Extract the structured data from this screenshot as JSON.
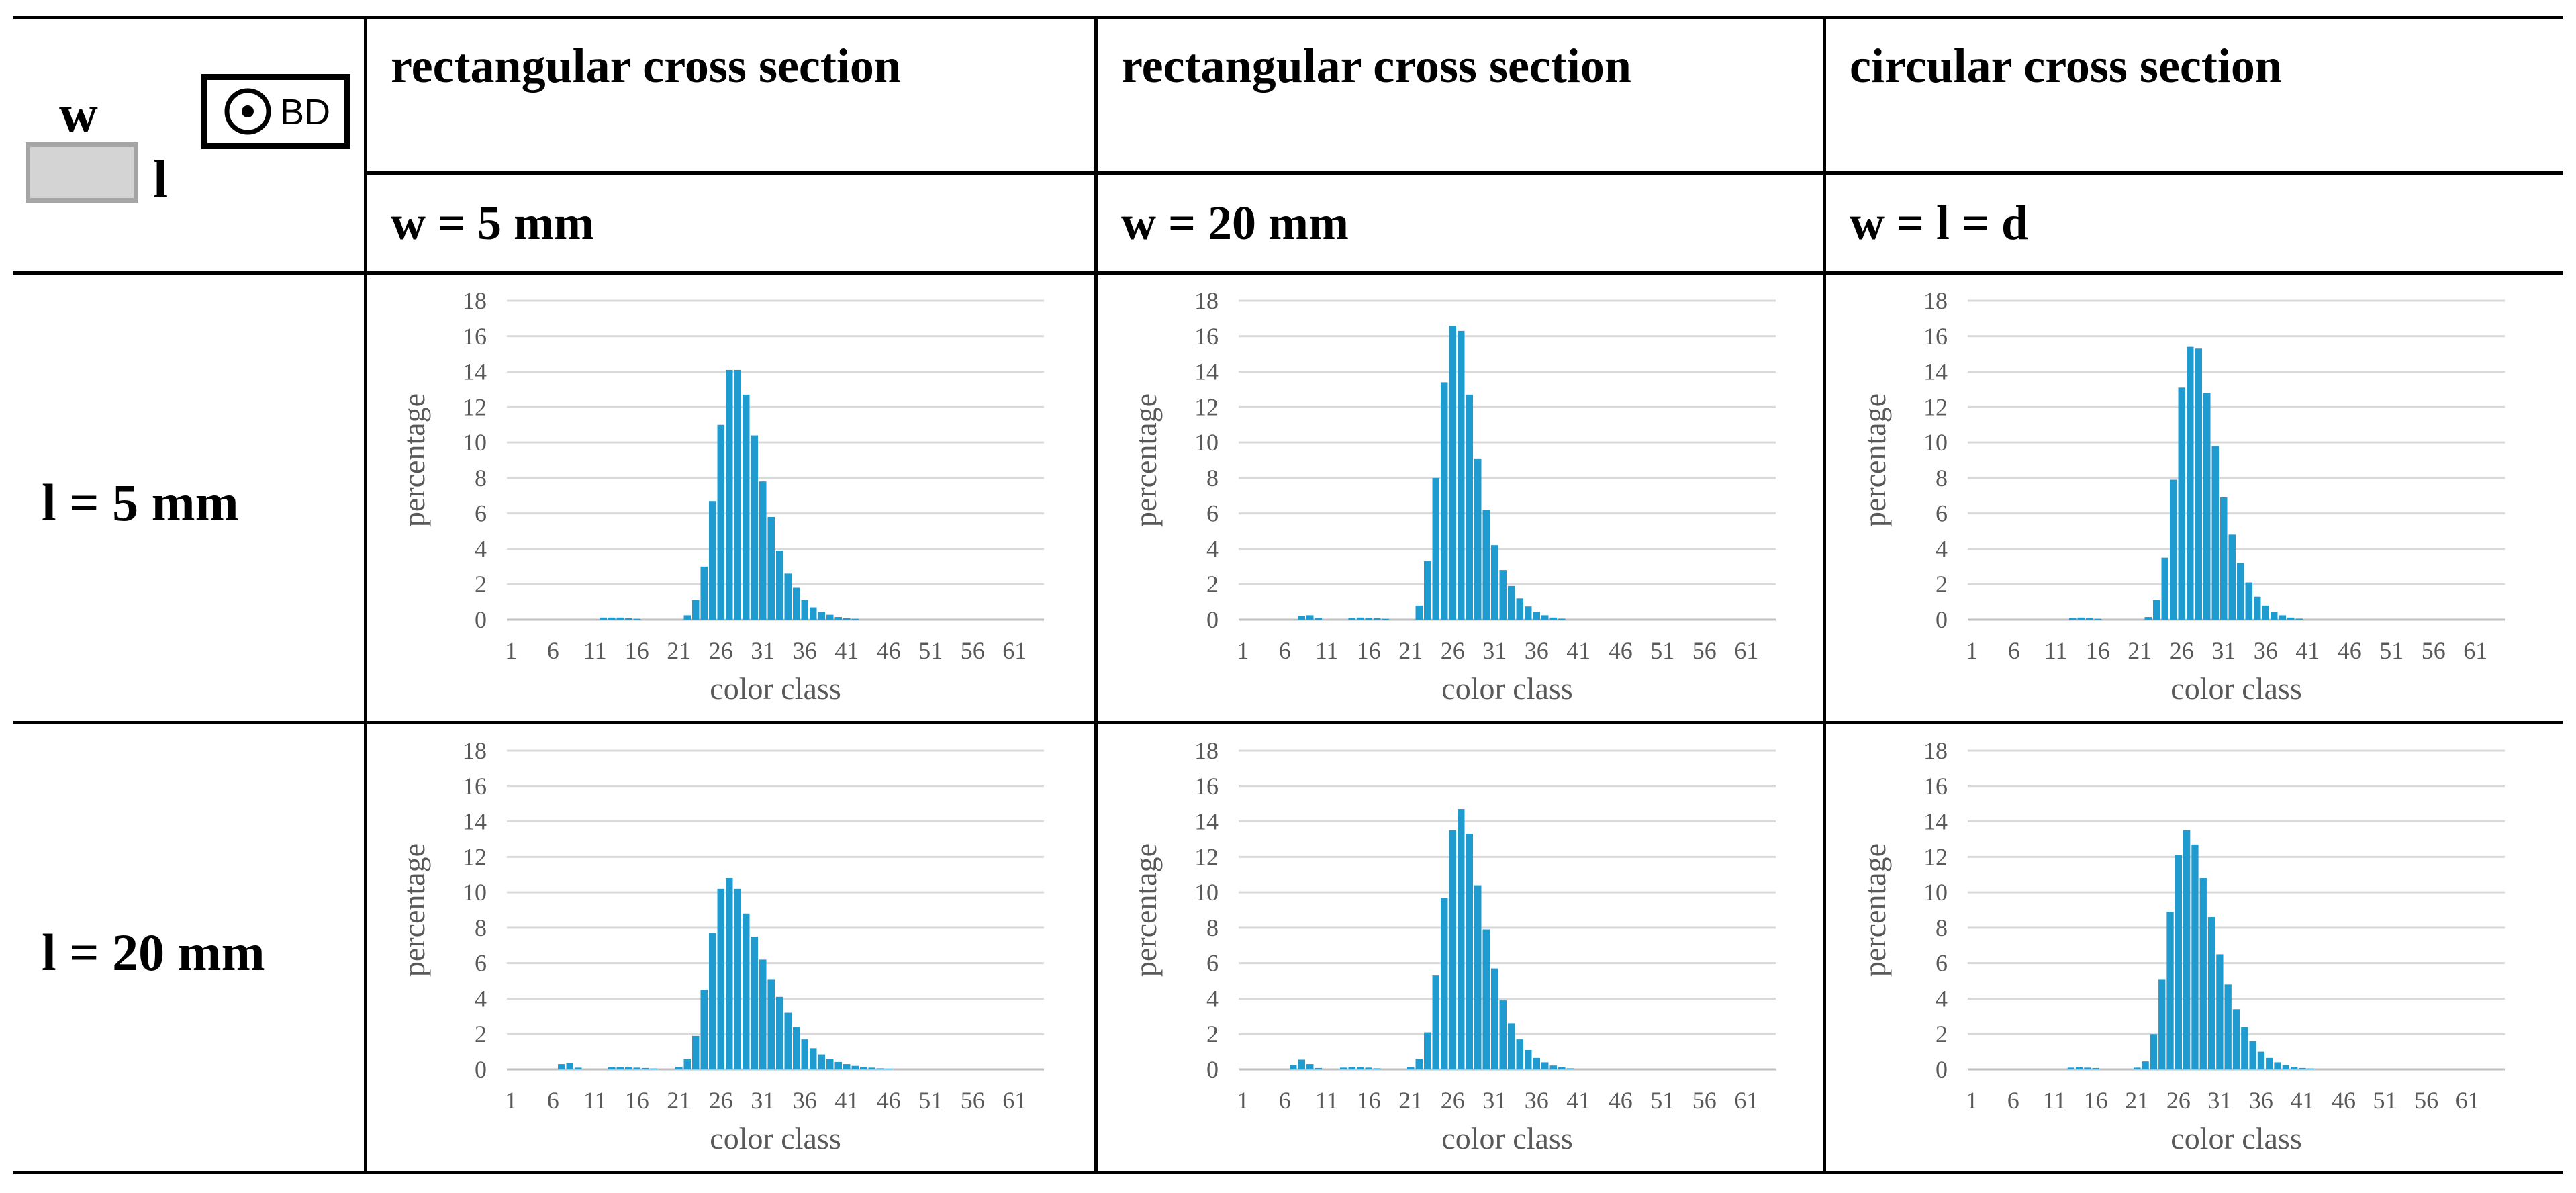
{
  "header": {
    "legend": {
      "w_symbol": "w",
      "l_symbol": "l",
      "bd_label": "BD"
    },
    "columns": [
      {
        "title": "rectangular cross section",
        "width_label": "w = 5 mm"
      },
      {
        "title": "rectangular cross section",
        "width_label": "w = 20 mm"
      },
      {
        "title": "circular cross section",
        "width_label": "w = l = d"
      }
    ],
    "rows": [
      {
        "label": "l = 5 mm"
      },
      {
        "label": "l = 20 mm"
      }
    ]
  },
  "colors": {
    "bar": "#1f9bd0",
    "grid": "#d9d9d9",
    "axis_text": "#595959"
  },
  "chart_data": [
    {
      "type": "bar",
      "id": "l5-w5",
      "row": 0,
      "col": 0,
      "xlabel": "color class",
      "ylabel": "percentage",
      "ylim": [
        0,
        18
      ],
      "yticks": [
        0,
        2,
        4,
        6,
        8,
        10,
        12,
        14,
        16,
        18
      ],
      "xticks": [
        1,
        6,
        11,
        16,
        21,
        26,
        31,
        36,
        41,
        46,
        51,
        56,
        61
      ],
      "x_start": 1,
      "values": [
        0,
        0,
        0,
        0,
        0,
        0,
        0,
        0,
        0,
        0,
        0,
        0.12,
        0.12,
        0.12,
        0.08,
        0.05,
        0,
        0,
        0,
        0,
        0,
        0.25,
        1.1,
        3.0,
        6.7,
        11.0,
        14.1,
        14.1,
        12.7,
        10.4,
        7.8,
        5.8,
        3.9,
        2.6,
        1.8,
        1.1,
        0.7,
        0.45,
        0.28,
        0.15,
        0.08,
        0.05,
        0,
        0,
        0,
        0,
        0,
        0,
        0,
        0,
        0,
        0,
        0,
        0,
        0,
        0,
        0,
        0,
        0,
        0,
        0,
        0,
        0,
        0
      ]
    },
    {
      "type": "bar",
      "id": "l5-w20",
      "row": 0,
      "col": 1,
      "xlabel": "color class",
      "ylabel": "percentage",
      "ylim": [
        0,
        18
      ],
      "yticks": [
        0,
        2,
        4,
        6,
        8,
        10,
        12,
        14,
        16,
        18
      ],
      "xticks": [
        1,
        6,
        11,
        16,
        21,
        26,
        31,
        36,
        41,
        46,
        51,
        56,
        61
      ],
      "x_start": 1,
      "values": [
        0,
        0,
        0,
        0,
        0,
        0,
        0,
        0.2,
        0.25,
        0.1,
        0,
        0,
        0,
        0.1,
        0.12,
        0.1,
        0.08,
        0.05,
        0,
        0,
        0,
        0.8,
        3.3,
        8.0,
        13.4,
        16.6,
        16.3,
        12.7,
        9.1,
        6.2,
        4.2,
        2.8,
        1.9,
        1.2,
        0.75,
        0.45,
        0.25,
        0.12,
        0.06,
        0,
        0,
        0,
        0,
        0,
        0,
        0,
        0,
        0,
        0,
        0,
        0,
        0,
        0,
        0,
        0,
        0,
        0,
        0,
        0,
        0,
        0,
        0,
        0,
        0
      ]
    },
    {
      "type": "bar",
      "id": "l5-circ",
      "row": 0,
      "col": 2,
      "xlabel": "color class",
      "ylabel": "percentage",
      "ylim": [
        0,
        18
      ],
      "yticks": [
        0,
        2,
        4,
        6,
        8,
        10,
        12,
        14,
        16,
        18
      ],
      "xticks": [
        1,
        6,
        11,
        16,
        21,
        26,
        31,
        36,
        41,
        46,
        51,
        56,
        61
      ],
      "x_start": 1,
      "values": [
        0,
        0,
        0,
        0,
        0,
        0,
        0,
        0,
        0,
        0,
        0,
        0,
        0.1,
        0.12,
        0.1,
        0.05,
        0,
        0,
        0,
        0,
        0,
        0.15,
        1.1,
        3.5,
        7.9,
        13.1,
        15.4,
        15.3,
        12.8,
        9.8,
        6.9,
        4.8,
        3.2,
        2.1,
        1.3,
        0.8,
        0.45,
        0.25,
        0.12,
        0.06,
        0,
        0,
        0,
        0,
        0,
        0,
        0,
        0,
        0,
        0,
        0,
        0,
        0,
        0,
        0,
        0,
        0,
        0,
        0,
        0,
        0,
        0,
        0,
        0
      ]
    },
    {
      "type": "bar",
      "id": "l20-w5",
      "row": 1,
      "col": 0,
      "xlabel": "color class",
      "ylabel": "percentage",
      "ylim": [
        0,
        18
      ],
      "yticks": [
        0,
        2,
        4,
        6,
        8,
        10,
        12,
        14,
        16,
        18
      ],
      "xticks": [
        1,
        6,
        11,
        16,
        21,
        26,
        31,
        36,
        41,
        46,
        51,
        56,
        61
      ],
      "x_start": 1,
      "values": [
        0,
        0,
        0,
        0,
        0,
        0,
        0.3,
        0.35,
        0.1,
        0,
        0,
        0,
        0.12,
        0.15,
        0.12,
        0.1,
        0.08,
        0.05,
        0,
        0,
        0.15,
        0.6,
        1.9,
        4.5,
        7.7,
        10.2,
        10.8,
        10.2,
        8.8,
        7.5,
        6.2,
        5.1,
        4.1,
        3.2,
        2.4,
        1.7,
        1.2,
        0.85,
        0.6,
        0.42,
        0.3,
        0.2,
        0.14,
        0.1,
        0.06,
        0.04,
        0,
        0,
        0,
        0,
        0,
        0,
        0,
        0,
        0,
        0,
        0,
        0,
        0,
        0,
        0,
        0,
        0,
        0
      ]
    },
    {
      "type": "bar",
      "id": "l20-w20",
      "row": 1,
      "col": 1,
      "xlabel": "color class",
      "ylabel": "percentage",
      "ylim": [
        0,
        18
      ],
      "yticks": [
        0,
        2,
        4,
        6,
        8,
        10,
        12,
        14,
        16,
        18
      ],
      "xticks": [
        1,
        6,
        11,
        16,
        21,
        26,
        31,
        36,
        41,
        46,
        51,
        56,
        61
      ],
      "x_start": 1,
      "values": [
        0,
        0,
        0,
        0,
        0,
        0,
        0.25,
        0.55,
        0.3,
        0.08,
        0,
        0,
        0.1,
        0.15,
        0.12,
        0.1,
        0.06,
        0,
        0,
        0,
        0.15,
        0.6,
        2.1,
        5.3,
        9.7,
        13.5,
        14.7,
        13.3,
        10.4,
        7.9,
        5.7,
        3.9,
        2.6,
        1.7,
        1.1,
        0.65,
        0.4,
        0.22,
        0.12,
        0.06,
        0,
        0,
        0,
        0,
        0,
        0,
        0,
        0,
        0,
        0,
        0,
        0,
        0,
        0,
        0,
        0,
        0,
        0,
        0,
        0,
        0,
        0,
        0,
        0
      ]
    },
    {
      "type": "bar",
      "id": "l20-circ",
      "row": 1,
      "col": 2,
      "xlabel": "color class",
      "ylabel": "percentage",
      "ylim": [
        0,
        18
      ],
      "yticks": [
        0,
        2,
        4,
        6,
        8,
        10,
        12,
        14,
        16,
        18
      ],
      "xticks": [
        1,
        6,
        11,
        16,
        21,
        26,
        31,
        36,
        41,
        46,
        51,
        56,
        61
      ],
      "x_start": 1,
      "values": [
        0,
        0,
        0,
        0,
        0,
        0,
        0,
        0,
        0,
        0,
        0,
        0,
        0.1,
        0.12,
        0.1,
        0.08,
        0,
        0,
        0,
        0,
        0.1,
        0.45,
        2.0,
        5.1,
        8.9,
        12.1,
        13.5,
        12.7,
        10.8,
        8.6,
        6.5,
        4.8,
        3.4,
        2.4,
        1.6,
        1.0,
        0.65,
        0.4,
        0.25,
        0.15,
        0.08,
        0.05,
        0,
        0,
        0,
        0,
        0,
        0,
        0,
        0,
        0,
        0,
        0,
        0,
        0,
        0,
        0,
        0,
        0,
        0,
        0,
        0,
        0,
        0,
        0
      ]
    }
  ]
}
